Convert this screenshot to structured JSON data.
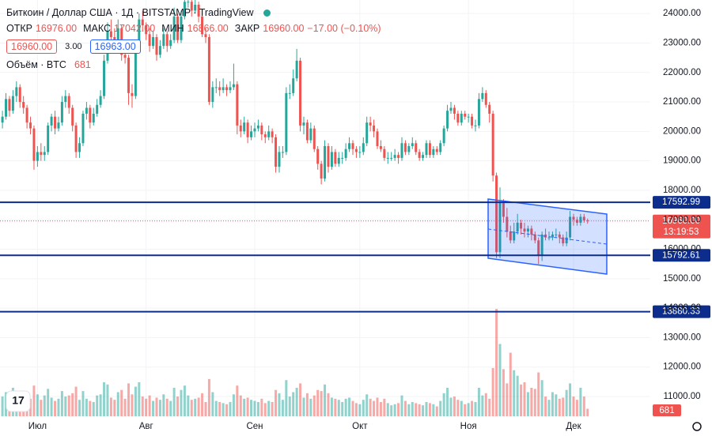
{
  "chart_data": {
    "type": "candlestick",
    "title": "Биткоин / Доллар США · 1Д · BITSTAMP · TradingView",
    "ohlc_legend": [
      {
        "label": "ОТКР",
        "value": "16976.00"
      },
      {
        "label": "МАКС",
        "value": "17042.00"
      },
      {
        "label": "МИН",
        "value": "16866.00"
      },
      {
        "label": "ЗАКР",
        "value": "16960.00"
      }
    ],
    "change": "−17.00 (−0.10%)",
    "bid": "16960.00",
    "spread": "3.00",
    "ask": "16963.00",
    "volume_title": "Объём · BTC",
    "up_color": "#26a69a",
    "down_color": "#ef5350",
    "grid": true,
    "xlim": [
      -0.7,
      184.9
    ],
    "ylim": [
      10330,
      24460
    ],
    "volume_ylim": [
      0,
      38000
    ],
    "xticks": [
      {
        "value": 10,
        "label": "Июл"
      },
      {
        "value": 41,
        "label": "Авг"
      },
      {
        "value": 72,
        "label": "Сен"
      },
      {
        "value": 102,
        "label": "Окт"
      },
      {
        "value": 133,
        "label": "Ноя"
      },
      {
        "value": 163,
        "label": "Дек"
      }
    ],
    "yticks": [
      {
        "value": 11000,
        "label": "11000.00"
      },
      {
        "value": 12000,
        "label": "12000.00"
      },
      {
        "value": 13000,
        "label": "13000.00"
      },
      {
        "value": 14000,
        "label": "14000.00"
      },
      {
        "value": 15000,
        "label": "15000.00"
      },
      {
        "value": 16000,
        "label": "16000.00"
      },
      {
        "value": 17000,
        "label": "17000.00"
      },
      {
        "value": 18000,
        "label": "18000.00"
      },
      {
        "value": 19000,
        "label": "19000.00"
      },
      {
        "value": 20000,
        "label": "20000.00"
      },
      {
        "value": 21000,
        "label": "21000.00"
      },
      {
        "value": 22000,
        "label": "22000.00"
      },
      {
        "value": 23000,
        "label": "23000.00"
      },
      {
        "value": 24000,
        "label": "24000.00"
      }
    ],
    "levels": [
      {
        "value": 17592.99,
        "label": "17592.99",
        "color": "#0c2d8c"
      },
      {
        "value": 15792.61,
        "label": "15792.61",
        "color": "#0c2d8c"
      },
      {
        "value": 13880.33,
        "label": "13880.33",
        "color": "#0c2d8c"
      }
    ],
    "last_price": {
      "value": 16960,
      "label": "16960.00",
      "color": "#ef5350"
    },
    "countdown": "13:19:53",
    "ohlc": [
      [
        20300,
        20700,
        20100,
        20500
      ],
      [
        20500,
        21300,
        20400,
        21100
      ],
      [
        21100,
        21200,
        20500,
        20700
      ],
      [
        20700,
        21400,
        20600,
        21200
      ],
      [
        21200,
        21700,
        21000,
        21500
      ],
      [
        21500,
        21600,
        20800,
        21000
      ],
      [
        21000,
        21200,
        20600,
        20800
      ],
      [
        20800,
        20900,
        20100,
        20300
      ],
      [
        20300,
        20500,
        19900,
        20100
      ],
      [
        20100,
        20200,
        18700,
        19000
      ],
      [
        19000,
        19500,
        18800,
        19300
      ],
      [
        19300,
        19600,
        19000,
        19200
      ],
      [
        19200,
        19500,
        19000,
        19300
      ],
      [
        19300,
        20300,
        19200,
        20200
      ],
      [
        20200,
        20600,
        20000,
        20500
      ],
      [
        20500,
        20700,
        19900,
        20100
      ],
      [
        20100,
        20500,
        20000,
        20300
      ],
      [
        20300,
        21200,
        20200,
        21000
      ],
      [
        21000,
        21400,
        20800,
        21200
      ],
      [
        21200,
        21300,
        20600,
        20800
      ],
      [
        20800,
        20900,
        20000,
        20200
      ],
      [
        20200,
        20300,
        19100,
        19300
      ],
      [
        19300,
        19800,
        19100,
        19600
      ],
      [
        19600,
        20700,
        19500,
        20600
      ],
      [
        20600,
        21000,
        20400,
        20800
      ],
      [
        20800,
        20900,
        20100,
        20300
      ],
      [
        20300,
        20800,
        20200,
        20600
      ],
      [
        20600,
        21100,
        20500,
        20900
      ],
      [
        20900,
        21400,
        20800,
        21200
      ],
      [
        21200,
        22600,
        21100,
        22400
      ],
      [
        22400,
        23700,
        22300,
        23400
      ],
      [
        23400,
        23800,
        23000,
        23200
      ],
      [
        23200,
        23500,
        22800,
        23100
      ],
      [
        23100,
        23800,
        23000,
        23500
      ],
      [
        23500,
        23600,
        22400,
        22600
      ],
      [
        22600,
        22900,
        22300,
        22500
      ],
      [
        22500,
        22600,
        20900,
        21300
      ],
      [
        21300,
        21600,
        20800,
        21200
      ],
      [
        21200,
        23100,
        21100,
        22900
      ],
      [
        22900,
        24000,
        22700,
        23800
      ],
      [
        23800,
        24100,
        23400,
        23600
      ],
      [
        23600,
        23700,
        23100,
        23300
      ],
      [
        23300,
        23500,
        22700,
        22900
      ],
      [
        22900,
        23400,
        22800,
        23200
      ],
      [
        23200,
        23300,
        22400,
        22600
      ],
      [
        22600,
        23100,
        22500,
        22900
      ],
      [
        22900,
        23500,
        22800,
        23300
      ],
      [
        23300,
        23400,
        22700,
        22900
      ],
      [
        22900,
        23300,
        22800,
        23100
      ],
      [
        23100,
        24200,
        23000,
        23900
      ],
      [
        23900,
        24000,
        23000,
        23100
      ],
      [
        23100,
        24100,
        23000,
        23900
      ],
      [
        23900,
        24700,
        23800,
        24400
      ],
      [
        24400,
        24900,
        24200,
        24400
      ],
      [
        24400,
        24500,
        23900,
        24100
      ],
      [
        24100,
        24600,
        24000,
        24300
      ],
      [
        24300,
        24400,
        23700,
        23900
      ],
      [
        23900,
        24100,
        23200,
        23300
      ],
      [
        23300,
        23500,
        23000,
        23200
      ],
      [
        23200,
        23300,
        20900,
        21000
      ],
      [
        21000,
        21700,
        20800,
        21500
      ],
      [
        21500,
        21800,
        21300,
        21500
      ],
      [
        21500,
        21700,
        21200,
        21400
      ],
      [
        21400,
        21800,
        21300,
        21500
      ],
      [
        21500,
        21600,
        21200,
        21400
      ],
      [
        21400,
        21700,
        21300,
        21500
      ],
      [
        21500,
        22300,
        21400,
        21600
      ],
      [
        21600,
        21700,
        19900,
        20200
      ],
      [
        20200,
        20400,
        19800,
        20000
      ],
      [
        20000,
        20500,
        19900,
        20300
      ],
      [
        20300,
        20400,
        19600,
        19800
      ],
      [
        19800,
        20200,
        19700,
        20000
      ],
      [
        20000,
        20300,
        19800,
        20100
      ],
      [
        20100,
        20400,
        20000,
        20200
      ],
      [
        20200,
        20300,
        19700,
        19900
      ],
      [
        19900,
        20000,
        19600,
        19800
      ],
      [
        19800,
        20200,
        19700,
        20000
      ],
      [
        20000,
        20100,
        19600,
        19800
      ],
      [
        19800,
        19900,
        18600,
        18800
      ],
      [
        18800,
        19500,
        18600,
        19300
      ],
      [
        19300,
        19500,
        19100,
        19300
      ],
      [
        19300,
        21500,
        19200,
        21300
      ],
      [
        21300,
        21600,
        21100,
        21300
      ],
      [
        21300,
        22100,
        21200,
        21800
      ],
      [
        21800,
        22800,
        21700,
        22400
      ],
      [
        22400,
        22500,
        20000,
        20200
      ],
      [
        20200,
        20500,
        19900,
        20300
      ],
      [
        20300,
        20400,
        19600,
        19700
      ],
      [
        19700,
        20300,
        19600,
        20100
      ],
      [
        20100,
        20200,
        19300,
        19400
      ],
      [
        19400,
        19500,
        18700,
        18900
      ],
      [
        18900,
        19000,
        18200,
        18400
      ],
      [
        18400,
        19700,
        18300,
        19500
      ],
      [
        19500,
        19600,
        18600,
        18800
      ],
      [
        18800,
        19500,
        18700,
        19300
      ],
      [
        19300,
        19400,
        18800,
        18900
      ],
      [
        18900,
        19300,
        18800,
        19100
      ],
      [
        19100,
        19300,
        18900,
        19100
      ],
      [
        19100,
        19600,
        19000,
        19400
      ],
      [
        19400,
        19800,
        19300,
        19600
      ],
      [
        19600,
        19700,
        19200,
        19400
      ],
      [
        19400,
        19500,
        19100,
        19300
      ],
      [
        19300,
        19500,
        19100,
        19300
      ],
      [
        19300,
        19800,
        19200,
        19600
      ],
      [
        19600,
        20500,
        19500,
        20300
      ],
      [
        20300,
        20500,
        20000,
        20200
      ],
      [
        20200,
        20400,
        19800,
        20000
      ],
      [
        20000,
        20100,
        19400,
        19500
      ],
      [
        19500,
        19700,
        19300,
        19400
      ],
      [
        19400,
        19500,
        19000,
        19100
      ],
      [
        19100,
        19300,
        18900,
        19100
      ],
      [
        19100,
        19300,
        19000,
        19100
      ],
      [
        19100,
        19400,
        19000,
        19200
      ],
      [
        19200,
        19300,
        18900,
        19100
      ],
      [
        19100,
        19800,
        19000,
        19600
      ],
      [
        19600,
        19700,
        19200,
        19300
      ],
      [
        19300,
        19600,
        19200,
        19500
      ],
      [
        19500,
        19800,
        19400,
        19600
      ],
      [
        19600,
        19700,
        19200,
        19300
      ],
      [
        19300,
        19400,
        19000,
        19100
      ],
      [
        19100,
        19300,
        19000,
        19200
      ],
      [
        19200,
        19700,
        19100,
        19600
      ],
      [
        19600,
        19700,
        19100,
        19200
      ],
      [
        19200,
        19500,
        19100,
        19400
      ],
      [
        19400,
        19500,
        19200,
        19300
      ],
      [
        19300,
        19700,
        19200,
        19600
      ],
      [
        19600,
        20200,
        19500,
        20100
      ],
      [
        20100,
        20900,
        20000,
        20700
      ],
      [
        20700,
        21000,
        20600,
        20800
      ],
      [
        20800,
        20900,
        20400,
        20600
      ],
      [
        20600,
        20700,
        20200,
        20300
      ],
      [
        20300,
        20700,
        20200,
        20600
      ],
      [
        20600,
        20700,
        20400,
        20500
      ],
      [
        20500,
        20600,
        20300,
        20500
      ],
      [
        20500,
        20600,
        20100,
        20200
      ],
      [
        20200,
        20400,
        20000,
        20200
      ],
      [
        20200,
        21300,
        20100,
        21100
      ],
      [
        21100,
        21500,
        21000,
        21300
      ],
      [
        21300,
        21400,
        20800,
        20900
      ],
      [
        20900,
        21000,
        20300,
        20600
      ],
      [
        20600,
        20700,
        18300,
        18500
      ],
      [
        18500,
        18600,
        15700,
        15900
      ],
      [
        15900,
        18100,
        15700,
        17600
      ],
      [
        17600,
        17700,
        16900,
        17100
      ],
      [
        17100,
        17400,
        16400,
        16600
      ],
      [
        16600,
        16800,
        16200,
        16300
      ],
      [
        16300,
        16900,
        16200,
        16600
      ],
      [
        16600,
        17200,
        16500,
        16900
      ],
      [
        16900,
        17000,
        16500,
        16700
      ],
      [
        16700,
        16900,
        16400,
        16600
      ],
      [
        16600,
        16800,
        16400,
        16700
      ],
      [
        16700,
        16800,
        16300,
        16500
      ],
      [
        16500,
        16600,
        16200,
        16300
      ],
      [
        16300,
        16400,
        15500,
        15800
      ],
      [
        15800,
        16600,
        15600,
        16500
      ],
      [
        16500,
        16700,
        16300,
        16400
      ],
      [
        16400,
        16600,
        16300,
        16400
      ],
      [
        16400,
        16600,
        16300,
        16500
      ],
      [
        16500,
        16700,
        16400,
        16500
      ],
      [
        16500,
        16600,
        16200,
        16400
      ],
      [
        16400,
        16500,
        16100,
        16200
      ],
      [
        16200,
        16600,
        16100,
        16400
      ],
      [
        16400,
        17300,
        16300,
        17100
      ],
      [
        17100,
        17200,
        16800,
        17000
      ],
      [
        17000,
        17100,
        16800,
        16900
      ],
      [
        16900,
        17200,
        16800,
        17100
      ],
      [
        17100,
        17200,
        16900,
        16976
      ],
      [
        16976,
        17042,
        16866,
        16960
      ]
    ],
    "volume": [
      1800,
      2200,
      1500,
      2600,
      1900,
      1200,
      1700,
      2100,
      1600,
      2800,
      2000,
      1500,
      1900,
      2500,
      1700,
      1400,
      1600,
      2300,
      1800,
      1900,
      2100,
      2700,
      1500,
      2300,
      1600,
      1400,
      1300,
      1900,
      2000,
      3100,
      2900,
      1700,
      1500,
      2200,
      2400,
      1600,
      3000,
      2000,
      2700,
      3100,
      1800,
      1600,
      1900,
      1400,
      1700,
      1500,
      2000,
      1600,
      1400,
      2600,
      1800,
      2400,
      2800,
      1900,
      1500,
      1600,
      1700,
      2100,
      1300,
      3400,
      2200,
      1400,
      1300,
      1200,
      1100,
      1300,
      2000,
      2800,
      1900,
      1600,
      1700,
      1500,
      1400,
      1300,
      1600,
      1200,
      1400,
      1300,
      2400,
      2100,
      1500,
      3300,
      1800,
      2200,
      2600,
      3000,
      1700,
      2100,
      1600,
      1900,
      2400,
      2300,
      2900,
      2100,
      1700,
      1600,
      1500,
      1300,
      1600,
      1700,
      1400,
      1200,
      1100,
      1500,
      2000,
      1600,
      1400,
      1700,
      1300,
      1600,
      1200,
      1000,
      1100,
      1200,
      1900,
      1400,
      1100,
      1300,
      1200,
      1100,
      1000,
      1300,
      1200,
      1100,
      900,
      1400,
      2100,
      2600,
      1700,
      1800,
      1500,
      1400,
      1100,
      1200,
      1400,
      1300,
      2600,
      1900,
      2100,
      1600,
      4400,
      9800,
      6600,
      4300,
      3000,
      5800,
      4200,
      3700,
      2900,
      3100,
      2200,
      2600,
      2500,
      4000,
      3300,
      1800,
      1500,
      2200,
      2000,
      1600,
      1700,
      2400,
      3000,
      1800,
      1500,
      2600,
      1800,
      681
    ]
  }
}
